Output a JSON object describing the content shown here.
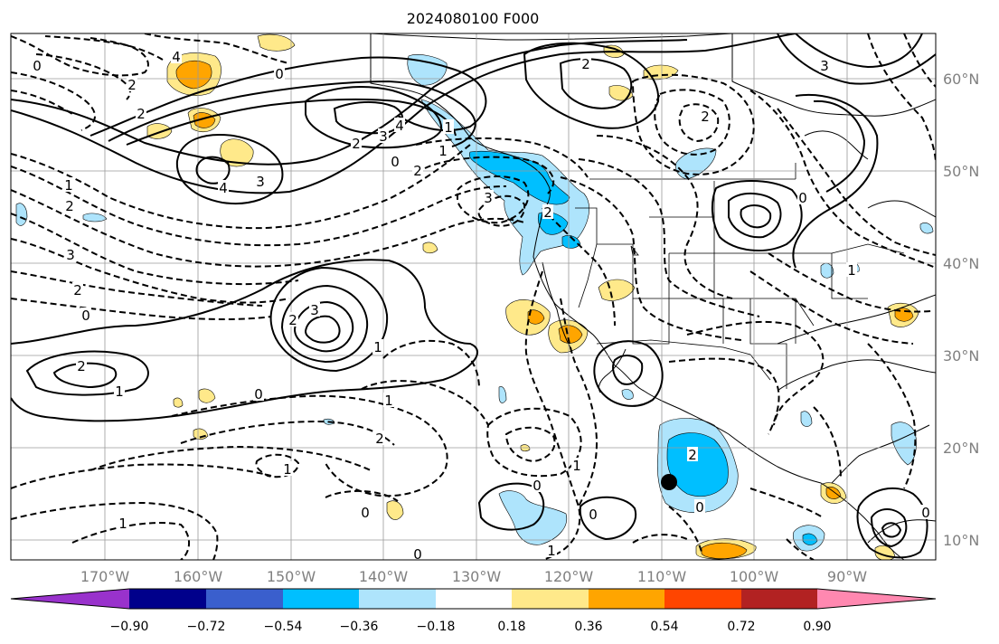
{
  "title": "2024080100 F000",
  "map": {
    "lon_labels": [
      "170°W",
      "160°W",
      "150°W",
      "140°W",
      "130°W",
      "120°W",
      "110°W",
      "100°W",
      "90°W"
    ],
    "lat_labels": [
      "60°N",
      "50°N",
      "40°N",
      "30°N",
      "20°N",
      "10°N"
    ],
    "contour_labels": {
      "l0a": "0",
      "l4a": "4",
      "l2a": "2",
      "l0b": "0",
      "l2b": "2",
      "l4b": "4",
      "l3a": "3",
      "l2c": "2",
      "l0c": "0",
      "l2d": "2",
      "l4c": "4",
      "l3b": "3",
      "l1a": "1",
      "l2e": "2",
      "l3c": "3",
      "l2f": "2",
      "l0d": "0",
      "l2g": "2",
      "l3d": "3",
      "l2h": "2",
      "l1b": "1",
      "l0e": "0",
      "l1c": "1",
      "l2i": "2",
      "l1d": "1",
      "l0f": "0",
      "l1e": "1",
      "l1f": "1",
      "l0g": "0",
      "l1g": "1",
      "l0h": "0",
      "l2j": "2",
      "l3e": "3",
      "l2k": "2",
      "l1h": "1",
      "l1i": "1",
      "l3f": "3",
      "l2l": "2",
      "l1j": "1",
      "l0i": "0",
      "l2m": "2",
      "l0j": "0",
      "l0k": "0",
      "l1k": "1",
      "l0l": "0"
    },
    "marker": "black-dot"
  },
  "colorbar": {
    "ticks": [
      "−0.90",
      "−0.72",
      "−0.54",
      "−0.36",
      "−0.18",
      "0.18",
      "0.36",
      "0.54",
      "0.72",
      "0.90"
    ],
    "colors": [
      "#9932cc",
      "#00008b",
      "#3a5fcd",
      "#00bfff",
      "#aee4fc",
      "#ffffff",
      "#ffe98a",
      "#ffa500",
      "#ff4500",
      "#b22222",
      "#ff88b0"
    ]
  }
}
